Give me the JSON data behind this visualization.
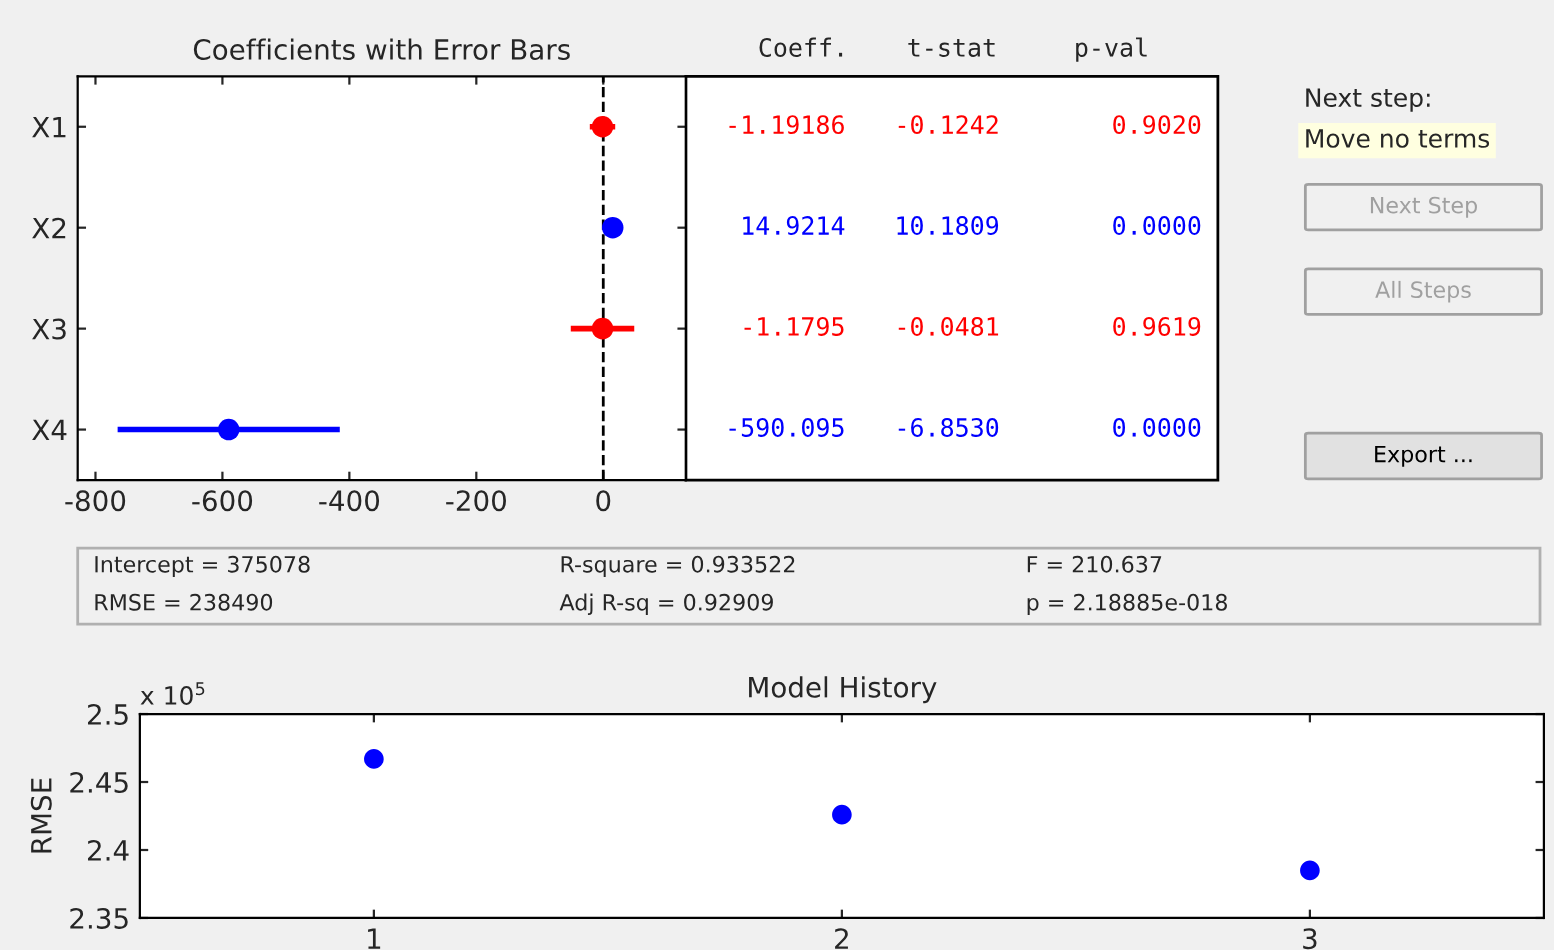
{
  "chart_data": [
    {
      "type": "scatter",
      "title": "Coefficients with Error Bars",
      "orientation": "horizontal",
      "categories": [
        "X1",
        "X2",
        "X3",
        "X4"
      ],
      "values": [
        -1.19186,
        14.9214,
        -1.1795,
        -590.095
      ],
      "colors": [
        "#ff0000",
        "#0000ff",
        "#ff0000",
        "#0000ff"
      ],
      "errors": [
        20,
        10,
        50,
        175
      ],
      "xlim": [
        -828,
        130
      ],
      "xticks": [
        -800,
        -600,
        -400,
        -200,
        0
      ],
      "ref_lines": [
        {
          "axis": "x",
          "value": 0,
          "color": "#000000",
          "line_style": "dashed"
        }
      ],
      "data_labels": true,
      "marker": "circle",
      "grid": false,
      "legend": false
    },
    {
      "type": "other",
      "categories": [
        "Coeff.",
        "t-stat",
        "p-val"
      ],
      "cell_labels": [
        [
          "-0.1242",
          "0.9020"
        ],
        [
          "10.1809",
          "0.0000"
        ],
        [
          "-0.0481",
          "0.9619"
        ],
        [
          "-6.8530",
          "0.0000"
        ]
      ],
      "colors": [
        "#ff0000",
        "#0000ff",
        "#ff0000",
        "#0000ff"
      ],
      "annotations": [
        "Next step:",
        "Move no terms",
        "Next Step",
        "All Steps",
        "Export ...",
        "Intercept = 375078",
        "RMSE = 238490",
        "R-square = 0.933522",
        "Adj R-sq = 0.92909",
        "F = 210.637",
        "p = 2.18885e-018"
      ]
    },
    {
      "type": "scatter",
      "title": "Model History",
      "ylabel": "RMSE",
      "x": [
        1,
        2,
        3
      ],
      "values": [
        2.467,
        2.426,
        2.385
      ],
      "colors": [
        "#0000ff",
        "#0000ff",
        "#0000ff"
      ],
      "xlim": [
        0.5,
        3.5
      ],
      "xticks": [
        1,
        2,
        3
      ],
      "ylim": [
        2.35,
        2.5
      ],
      "yticks": [
        2.35,
        2.4,
        2.45,
        2.5
      ],
      "annotations": [
        "x 10$^{5}$"
      ],
      "marker": "circle",
      "grid": false,
      "legend": false
    }
  ]
}
